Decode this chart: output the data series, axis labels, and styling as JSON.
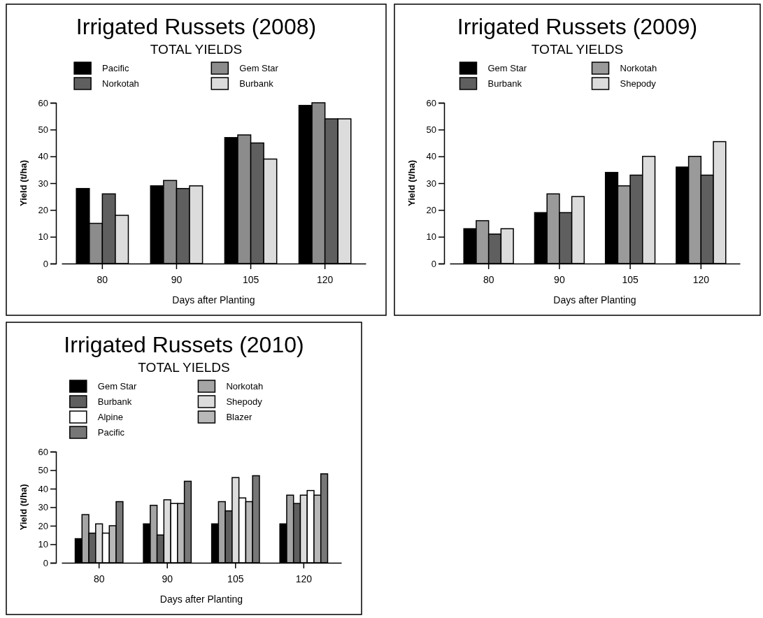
{
  "chart_data": [
    {
      "type": "bar",
      "title": "Irrigated Russets (2008)",
      "subtitle": "TOTAL YIELDS",
      "xlabel": "Days after Planting",
      "ylabel": "Yield (t/ha)",
      "categories": [
        "80",
        "90",
        "105",
        "120"
      ],
      "ylim": [
        0,
        60
      ],
      "yticks": [
        0,
        10,
        20,
        30,
        40,
        50,
        60
      ],
      "grid": false,
      "legend": "top",
      "series": [
        {
          "name": "Pacific",
          "color": "#000000",
          "values": [
            28,
            29,
            47,
            59
          ]
        },
        {
          "name": "Gem Star",
          "color": "#8c8c8c",
          "values": [
            15,
            31,
            48,
            60
          ]
        },
        {
          "name": "Norkotah",
          "color": "#5f5f5f",
          "values": [
            26,
            28,
            45,
            54
          ]
        },
        {
          "name": "Burbank",
          "color": "#dcdcdc",
          "values": [
            18,
            29,
            39,
            54
          ]
        }
      ]
    },
    {
      "type": "bar",
      "title": "Irrigated Russets (2009)",
      "subtitle": "TOTAL YIELDS",
      "xlabel": "Days after Planting",
      "ylabel": "Yield (t/ha)",
      "categories": [
        "80",
        "90",
        "105",
        "120"
      ],
      "ylim": [
        0,
        60
      ],
      "yticks": [
        0,
        10,
        20,
        30,
        40,
        50,
        60
      ],
      "grid": false,
      "legend": "top",
      "series": [
        {
          "name": "Gem Star",
          "color": "#000000",
          "values": [
            13,
            19,
            34,
            36
          ]
        },
        {
          "name": "Norkotah",
          "color": "#9a9a9a",
          "values": [
            16,
            26,
            29,
            40
          ]
        },
        {
          "name": "Burbank",
          "color": "#5f5f5f",
          "values": [
            11,
            19,
            33,
            33
          ]
        },
        {
          "name": "Shepody",
          "color": "#dcdcdc",
          "values": [
            13,
            25,
            40,
            45.5
          ]
        }
      ]
    },
    {
      "type": "bar",
      "title": "Irrigated Russets (2010)",
      "subtitle": "TOTAL YIELDS",
      "xlabel": "Days after Planting",
      "ylabel": "Yield (t/ha)",
      "categories": [
        "80",
        "90",
        "105",
        "120"
      ],
      "ylim": [
        0,
        60
      ],
      "yticks": [
        0,
        10,
        20,
        30,
        40,
        50,
        60
      ],
      "grid": false,
      "legend": "top",
      "series": [
        {
          "name": "Gem Star",
          "color": "#000000",
          "values": [
            13,
            21,
            21,
            21
          ]
        },
        {
          "name": "Norkotah",
          "color": "#a5a5a5",
          "values": [
            26,
            31,
            33,
            36.5
          ]
        },
        {
          "name": "Burbank",
          "color": "#5f5f5f",
          "values": [
            16,
            15,
            28,
            32
          ]
        },
        {
          "name": "Shepody",
          "color": "#dcdcdc",
          "values": [
            21,
            34,
            46,
            36.5
          ]
        },
        {
          "name": "Alpine",
          "color": "#ffffff",
          "values": [
            16,
            32,
            35,
            39
          ]
        },
        {
          "name": "Blazer",
          "color": "#b8b8b8",
          "values": [
            20,
            32,
            33,
            36.5
          ]
        },
        {
          "name": "Pacific",
          "color": "#777777",
          "values": [
            33,
            44,
            47,
            48
          ]
        }
      ]
    }
  ]
}
